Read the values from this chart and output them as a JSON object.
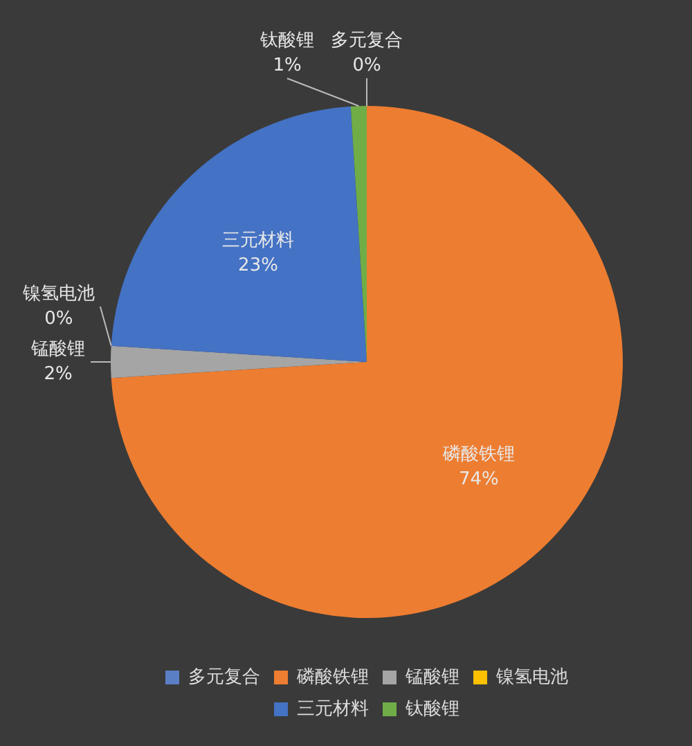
{
  "chart_data": {
    "type": "pie",
    "categories": [
      "多元复合",
      "磷酸铁锂",
      "锰酸锂",
      "镍氢电池",
      "三元材料",
      "钛酸锂"
    ],
    "values": [
      0,
      74,
      2,
      0,
      23,
      1
    ],
    "colors": [
      "#5b7fc4",
      "#ed7d31",
      "#a5a5a5",
      "#ffc000",
      "#4472c4",
      "#70ad47"
    ],
    "value_labels": [
      "0%",
      "74%",
      "2%",
      "0%",
      "23%",
      "1%"
    ],
    "legend": "bottom"
  }
}
